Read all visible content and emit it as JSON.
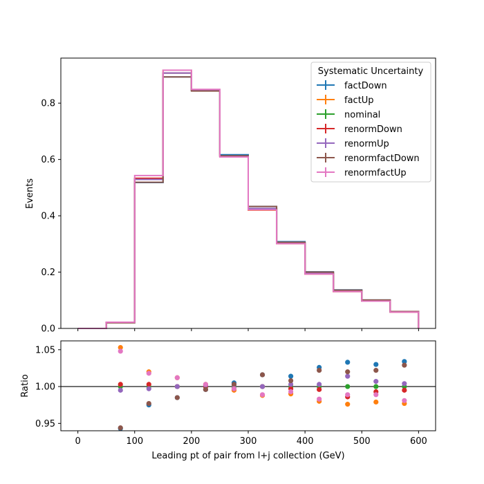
{
  "chart_data": [
    {
      "type": "line",
      "panel": "top",
      "step": true,
      "xlabel": "",
      "ylabel": "Events",
      "xlim": [
        -30,
        630
      ],
      "ylim": [
        0,
        0.96
      ],
      "xticks": [
        0,
        100,
        200,
        300,
        400,
        500,
        600
      ],
      "yticks": [
        0.0,
        0.2,
        0.4,
        0.6,
        0.8
      ],
      "ytick_labels": [
        "0.0",
        "0.2",
        "0.4",
        "0.6",
        "0.8"
      ],
      "bin_edges": [
        0,
        50,
        100,
        150,
        200,
        250,
        300,
        350,
        400,
        450,
        500,
        550,
        600
      ],
      "legend": {
        "title": "Systematic Uncertainty",
        "placement": "top-right"
      },
      "series": [
        {
          "name": "factDown",
          "color": "#1f77b4",
          "values": [
            0.0,
            0.022,
            0.518,
            0.893,
            0.845,
            0.617,
            0.433,
            0.308,
            0.201,
            0.137,
            0.101,
            0.06
          ]
        },
        {
          "name": "factUp",
          "color": "#ff7f0e",
          "values": [
            0.0,
            0.022,
            0.533,
            0.917,
            0.848,
            0.61,
            0.42,
            0.301,
            0.193,
            0.131,
            0.097,
            0.058
          ]
        },
        {
          "name": "nominal",
          "color": "#2ca02c",
          "values": [
            0.0,
            0.021,
            0.531,
            0.907,
            0.846,
            0.612,
            0.426,
            0.304,
            0.196,
            0.133,
            0.099,
            0.059
          ]
        },
        {
          "name": "renormDown",
          "color": "#d62728",
          "values": [
            0.0,
            0.021,
            0.533,
            0.907,
            0.846,
            0.612,
            0.426,
            0.303,
            0.195,
            0.131,
            0.098,
            0.058
          ]
        },
        {
          "name": "renormUp",
          "color": "#9467bd",
          "values": [
            0.0,
            0.021,
            0.529,
            0.907,
            0.846,
            0.613,
            0.426,
            0.304,
            0.197,
            0.135,
            0.1,
            0.059
          ]
        },
        {
          "name": "renormfactDown",
          "color": "#8c564b",
          "values": [
            0.0,
            0.02,
            0.519,
            0.893,
            0.843,
            0.613,
            0.433,
            0.306,
            0.2,
            0.136,
            0.101,
            0.06
          ]
        },
        {
          "name": "renormfactUp",
          "color": "#e377c2",
          "values": [
            0.0,
            0.022,
            0.543,
            0.917,
            0.849,
            0.609,
            0.421,
            0.301,
            0.193,
            0.131,
            0.097,
            0.058
          ]
        }
      ]
    },
    {
      "type": "scatter",
      "panel": "bottom",
      "xlabel": "Leading pt of pair from l+j collection (GeV)",
      "ylabel": "Ratio",
      "xlim": [
        -30,
        630
      ],
      "ylim": [
        0.94,
        1.062
      ],
      "xticks": [
        0,
        100,
        200,
        300,
        400,
        500,
        600
      ],
      "yticks": [
        0.95,
        1.0,
        1.05
      ],
      "ytick_labels": [
        "0.95",
        "1.00",
        "1.05"
      ],
      "reference_line": 1.0,
      "x": [
        75,
        125,
        175,
        225,
        275,
        325,
        375,
        425,
        475,
        525,
        575
      ],
      "series": [
        {
          "name": "factDown",
          "color": "#1f77b4",
          "values": [
            0.943,
            0.975,
            0.985,
            0.996,
            1.005,
            1.016,
            1.014,
            1.026,
            1.033,
            1.03,
            1.034
          ]
        },
        {
          "name": "factUp",
          "color": "#ff7f0e",
          "values": [
            1.053,
            1.02,
            1.012,
            1.003,
            0.995,
            0.988,
            0.99,
            0.98,
            0.976,
            0.979,
            0.977
          ]
        },
        {
          "name": "nominal",
          "color": "#2ca02c",
          "values": [
            1.0,
            1.0,
            1.0,
            1.0,
            1.0,
            1.0,
            1.0,
            1.0,
            1.0,
            1.0,
            1.0
          ]
        },
        {
          "name": "renormDown",
          "color": "#d62728",
          "values": [
            1.003,
            1.003,
            1.0,
            1.0,
            0.997,
            1.0,
            0.997,
            0.996,
            0.986,
            0.993,
            0.995
          ]
        },
        {
          "name": "renormUp",
          "color": "#9467bd",
          "values": [
            0.995,
            0.997,
            1.0,
            1.002,
            1.002,
            1.0,
            1.003,
            1.003,
            1.014,
            1.007,
            1.004
          ]
        },
        {
          "name": "renormfactDown",
          "color": "#8c564b",
          "values": [
            0.944,
            0.977,
            0.985,
            0.996,
            1.003,
            1.016,
            1.008,
            1.022,
            1.02,
            1.022,
            1.029
          ]
        },
        {
          "name": "renormfactUp",
          "color": "#e377c2",
          "values": [
            1.048,
            1.018,
            1.012,
            1.003,
            0.997,
            0.989,
            0.993,
            0.983,
            0.989,
            0.989,
            0.981
          ]
        }
      ]
    }
  ]
}
